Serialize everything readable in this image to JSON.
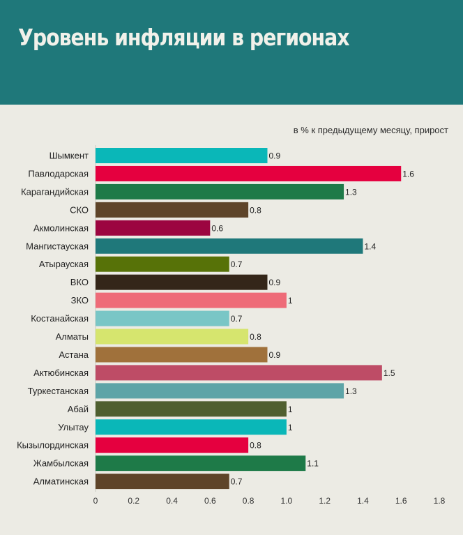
{
  "header": {
    "title": "Уровень инфляции в регионах",
    "background_color": "#1f787a"
  },
  "chart_data": {
    "type": "bar",
    "orientation": "horizontal",
    "title": "Уровень инфляции в регионах",
    "subtitle": "в % к предыдущему месяцу, прирост",
    "xlabel": "",
    "ylabel": "",
    "xlim": [
      0,
      1.8
    ],
    "x_ticks": [
      "0",
      "0.2",
      "0.4",
      "0.6",
      "0.8",
      "1.0",
      "1.2",
      "1.4",
      "1.6",
      "1.8"
    ],
    "grid": false,
    "legend": "none",
    "categories": [
      "Шымкент",
      "Павлодарская",
      "Карагандийская",
      "СКО",
      "Акмолинская",
      "Мангистауская",
      "Атырауская",
      "ВКО",
      "ЗКО",
      "Костанайская",
      "Алматы",
      "Астана",
      "Актюбинская",
      "Туркестанская",
      "Абай",
      "Улытау",
      "Кызылординская",
      "Жамбылская",
      "Алматинская"
    ],
    "values": [
      0.9,
      1.6,
      1.3,
      0.8,
      0.6,
      1.4,
      0.7,
      0.9,
      1,
      0.7,
      0.8,
      0.9,
      1.5,
      1.3,
      1,
      1,
      0.8,
      1.1,
      0.7
    ],
    "value_labels": [
      "0.9",
      "1.6",
      "1.3",
      "0.8",
      "0.6",
      "1.4",
      "0.7",
      "0.9",
      "1",
      "0.7",
      "0.8",
      "0.9",
      "1.5",
      "1.3",
      "1",
      "1",
      "0.8",
      "1.1",
      "0.7"
    ],
    "colors": [
      "#0ab7b8",
      "#e5003f",
      "#1e7a48",
      "#5e4429",
      "#9c0540",
      "#1f787a",
      "#577208",
      "#342619",
      "#ee6b78",
      "#79c6c6",
      "#d6e56e",
      "#a0713b",
      "#be4c66",
      "#5da4a7",
      "#4f5f2f",
      "#0ab7b8",
      "#e5003f",
      "#1e7a48",
      "#5e4429"
    ]
  }
}
